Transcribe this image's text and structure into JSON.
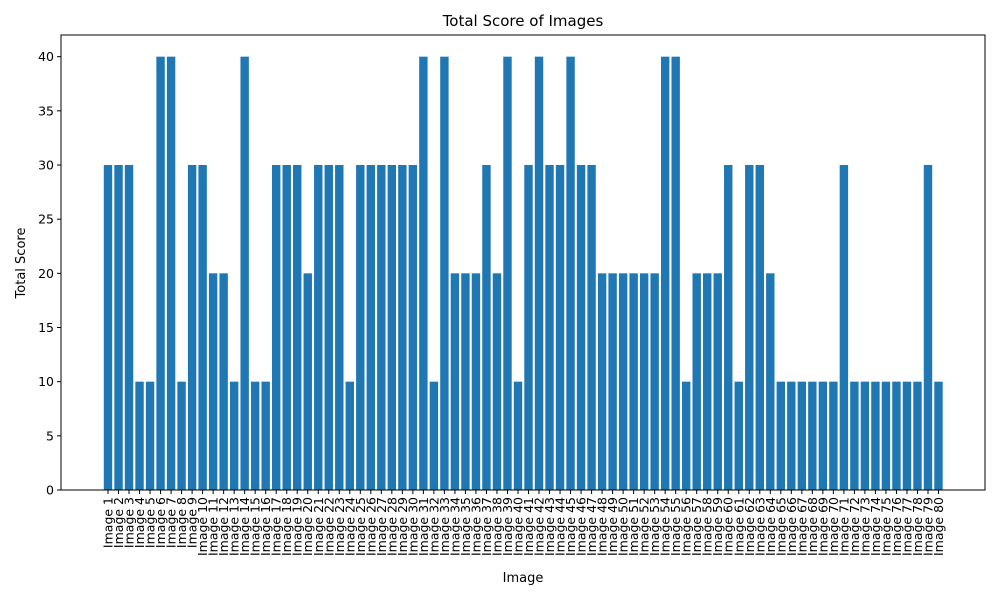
{
  "chart_data": {
    "type": "bar",
    "title": "Total Score of Images",
    "xlabel": "Image",
    "ylabel": "Total Score",
    "ylim": [
      0,
      42
    ],
    "yticks": [
      0,
      5,
      10,
      15,
      20,
      25,
      30,
      35,
      40
    ],
    "bar_color": "#1f77b4",
    "grid": false,
    "categories": [
      "Image 1",
      "Image 2",
      "Image 3",
      "Image 4",
      "Image 5",
      "Image 6",
      "Image 7",
      "Image 8",
      "Image 9",
      "Image 10",
      "Image 11",
      "Image 12",
      "Image 13",
      "Image 14",
      "Image 15",
      "Image 16",
      "Image 17",
      "Image 18",
      "Image 19",
      "Image 20",
      "Image 21",
      "Image 22",
      "Image 23",
      "Image 24",
      "Image 25",
      "Image 26",
      "Image 27",
      "Image 28",
      "Image 29",
      "Image 30",
      "Image 31",
      "Image 32",
      "Image 33",
      "Image 34",
      "Image 35",
      "Image 36",
      "Image 37",
      "Image 38",
      "Image 39",
      "Image 40",
      "Image 41",
      "Image 42",
      "Image 43",
      "Image 44",
      "Image 45",
      "Image 46",
      "Image 47",
      "Image 48",
      "Image 49",
      "Image 50",
      "Image 51",
      "Image 52",
      "Image 53",
      "Image 54",
      "Image 55",
      "Image 56",
      "Image 57",
      "Image 58",
      "Image 59",
      "Image 60",
      "Image 61",
      "Image 62",
      "Image 63",
      "Image 64",
      "Image 65",
      "Image 66",
      "Image 67",
      "Image 68",
      "Image 69",
      "Image 70",
      "Image 71",
      "Image 72",
      "Image 73",
      "Image 74",
      "Image 75",
      "Image 76",
      "Image 77",
      "Image 78",
      "Image 79",
      "Image 80"
    ],
    "values": [
      30,
      30,
      30,
      10,
      10,
      40,
      40,
      10,
      30,
      30,
      20,
      20,
      10,
      40,
      10,
      10,
      30,
      30,
      30,
      20,
      30,
      30,
      30,
      10,
      30,
      30,
      30,
      30,
      30,
      30,
      40,
      10,
      40,
      20,
      20,
      20,
      30,
      20,
      40,
      10,
      30,
      40,
      30,
      30,
      40,
      30,
      30,
      20,
      20,
      20,
      20,
      20,
      20,
      40,
      40,
      10,
      20,
      20,
      20,
      30,
      10,
      30,
      30,
      20,
      10,
      10,
      10,
      10,
      10,
      10,
      30,
      10,
      10,
      10,
      10,
      10,
      10,
      10,
      30,
      10
    ]
  }
}
